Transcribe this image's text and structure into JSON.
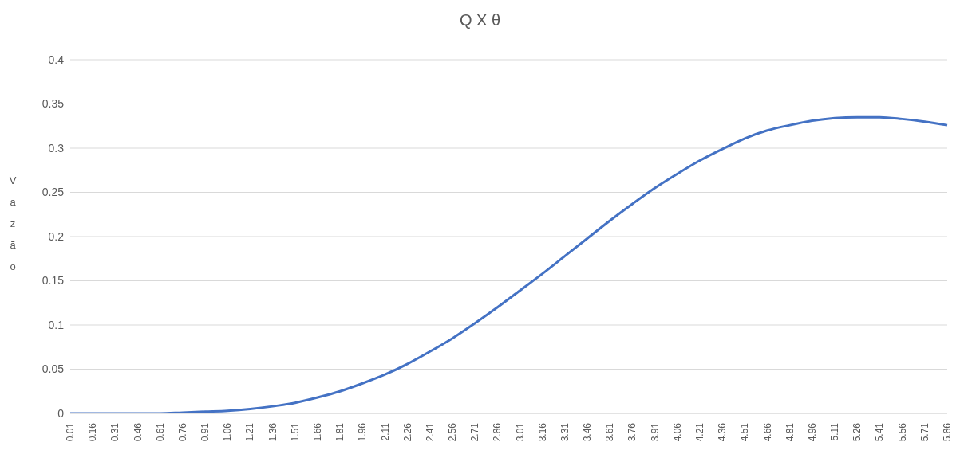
{
  "chart_data": {
    "type": "line",
    "title": "Q X θ",
    "ylabel": "Vazão",
    "categories": [
      "0.01",
      "0.16",
      "0.31",
      "0.46",
      "0.61",
      "0.76",
      "0.91",
      "1.06",
      "1.21",
      "1.36",
      "1.51",
      "1.66",
      "1.81",
      "1.96",
      "2.11",
      "2.26",
      "2.41",
      "2.56",
      "2.71",
      "2.86",
      "3.01",
      "3.16",
      "3.31",
      "3.46",
      "3.61",
      "3.76",
      "3.91",
      "4.06",
      "4.21",
      "4.36",
      "4.51",
      "4.66",
      "4.81",
      "4.96",
      "5.11",
      "5.26",
      "5.41",
      "5.56",
      "5.71",
      "5.86"
    ],
    "series": [
      {
        "color": "#4472c4",
        "values": [
          0,
          0,
          0,
          0,
          0,
          0.001,
          0.002,
          0.003,
          0.005,
          0.008,
          0.012,
          0.018,
          0.025,
          0.034,
          0.044,
          0.056,
          0.07,
          0.085,
          0.102,
          0.12,
          0.139,
          0.158,
          0.178,
          0.198,
          0.218,
          0.237,
          0.255,
          0.271,
          0.286,
          0.299,
          0.311,
          0.32,
          0.326,
          0.331,
          0.334,
          0.335,
          0.335,
          0.333,
          0.33,
          0.326
        ]
      }
    ],
    "ylim": [
      0,
      0.4
    ],
    "yticks": [
      0,
      0.05,
      0.1,
      0.15,
      0.2,
      0.25,
      0.3,
      0.35,
      0.4
    ],
    "grid": "y",
    "legend": false,
    "marker": "none",
    "line_style": "solid"
  }
}
